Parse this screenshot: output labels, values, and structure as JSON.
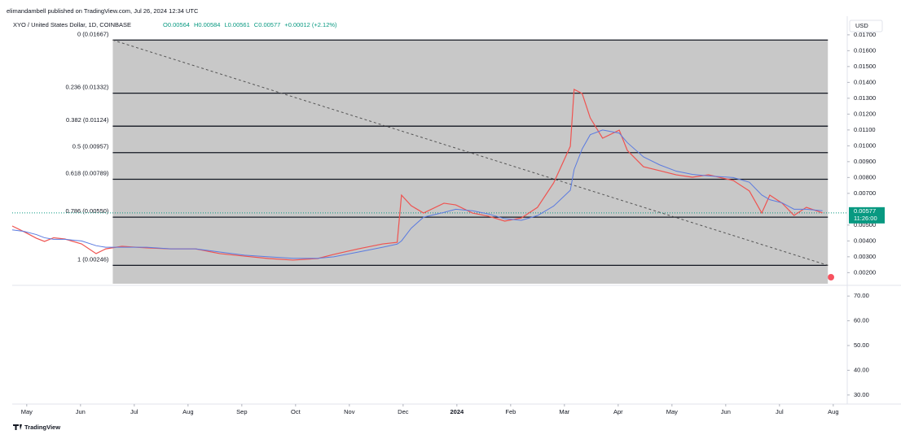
{
  "publisher": "elimandambell published on TradingView.com, Jul 26, 2024 12:34 UTC",
  "brand": "TradingView",
  "chart_data": {
    "type": "line",
    "symbol": "XYO / United States Dollar, 1D, COINBASE",
    "ohlc": [
      "O0.00564",
      "H0.00584",
      "L0.00561",
      "C0.00577",
      "+0.00012 (+2.12%)"
    ],
    "currency": "USD",
    "x": [
      -0.27,
      -0.05,
      0.18,
      0.33,
      0.5,
      0.71,
      1.02,
      1.29,
      1.47,
      1.77,
      2.23,
      2.68,
      3.14,
      3.59,
      4.05,
      4.5,
      4.95,
      5.41,
      5.71,
      6.17,
      6.62,
      6.89,
      6.97,
      7.15,
      7.38,
      7.76,
      7.98,
      8.29,
      8.59,
      8.89,
      9.2,
      9.5,
      9.8,
      10.11,
      10.18,
      10.33,
      10.48,
      10.71,
      11.02,
      11.17,
      11.47,
      11.77,
      12.08,
      12.38,
      12.68,
      13.14,
      13.44,
      13.67,
      13.82,
      14.05,
      14.27,
      14.5,
      14.8
    ],
    "series": [
      {
        "color": "#ef5350",
        "values": [
          0.00494,
          0.00458,
          0.00417,
          0.00397,
          0.0042,
          0.00412,
          0.00381,
          0.0032,
          0.0035,
          0.00366,
          0.00356,
          0.0035,
          0.0035,
          0.0032,
          0.00304,
          0.00289,
          0.00279,
          0.00289,
          0.00315,
          0.0035,
          0.00381,
          0.00391,
          0.00689,
          0.00622,
          0.00576,
          0.00638,
          0.00627,
          0.00576,
          0.00556,
          0.00525,
          0.00545,
          0.00612,
          0.00766,
          0.00997,
          0.01356,
          0.0133,
          0.01176,
          0.01048,
          0.01099,
          0.00971,
          0.00868,
          0.00843,
          0.00817,
          0.00802,
          0.00817,
          0.00781,
          0.00715,
          0.00576,
          0.00689,
          0.00638,
          0.00561,
          0.00612,
          0.00577
        ]
      },
      {
        "color": "#5b7be0",
        "values": [
          0.0047,
          0.0046,
          0.0044,
          0.0042,
          0.0041,
          0.0041,
          0.004,
          0.0037,
          0.0036,
          0.0036,
          0.0036,
          0.0035,
          0.0035,
          0.0033,
          0.0031,
          0.003,
          0.0029,
          0.0029,
          0.003,
          0.0033,
          0.0036,
          0.0038,
          0.004,
          0.0048,
          0.0055,
          0.0058,
          0.006,
          0.0059,
          0.0057,
          0.0054,
          0.0053,
          0.0056,
          0.0062,
          0.0072,
          0.0085,
          0.0098,
          0.0107,
          0.011,
          0.0108,
          0.0102,
          0.0093,
          0.0088,
          0.0084,
          0.0082,
          0.0081,
          0.008,
          0.0077,
          0.0069,
          0.0066,
          0.0064,
          0.006,
          0.006,
          0.0059
        ]
      }
    ],
    "xlim": [
      -0.27,
      15.26
    ],
    "xticks": [
      {
        "value": 0,
        "label": "May"
      },
      {
        "value": 1,
        "label": "Jun"
      },
      {
        "value": 2,
        "label": "Jul"
      },
      {
        "value": 3,
        "label": "Aug"
      },
      {
        "value": 4,
        "label": "Sep"
      },
      {
        "value": 5,
        "label": "Oct"
      },
      {
        "value": 6,
        "label": "Nov"
      },
      {
        "value": 7,
        "label": "Dec"
      },
      {
        "value": 8,
        "label": "2024"
      },
      {
        "value": 9,
        "label": "Feb"
      },
      {
        "value": 10,
        "label": "Mar"
      },
      {
        "value": 11,
        "label": "Apr"
      },
      {
        "value": 12,
        "label": "May"
      },
      {
        "value": 13,
        "label": "Jun"
      },
      {
        "value": 14,
        "label": "Jul"
      },
      {
        "value": 15,
        "label": "Aug"
      }
    ],
    "ylim": [
      0.0013,
      0.0173
    ],
    "yticks": [
      {
        "value": 0.017,
        "label": "0.01700"
      },
      {
        "value": 0.016,
        "label": "0.01600"
      },
      {
        "value": 0.015,
        "label": "0.01500"
      },
      {
        "value": 0.014,
        "label": "0.01400"
      },
      {
        "value": 0.013,
        "label": "0.01300"
      },
      {
        "value": 0.012,
        "label": "0.01200"
      },
      {
        "value": 0.011,
        "label": "0.01100"
      },
      {
        "value": 0.01,
        "label": "0.01000"
      },
      {
        "value": 0.009,
        "label": "0.00900"
      },
      {
        "value": 0.008,
        "label": "0.00800"
      },
      {
        "value": 0.007,
        "label": "0.00700"
      },
      {
        "value": 0.005,
        "label": "0.00500"
      },
      {
        "value": 0.004,
        "label": "0.00400"
      },
      {
        "value": 0.003,
        "label": "0.00300"
      },
      {
        "value": 0.002,
        "label": "0.00200"
      }
    ],
    "last_price": {
      "value": 0.00577,
      "label": "0.00577",
      "countdown": "11:26:00",
      "color": "#089981"
    },
    "fib_x": [
      1.6,
      14.9
    ],
    "fib_fill": "#c8c8c8",
    "fib_levels": [
      {
        "value": 0.01667,
        "label": "0 (0.01667)"
      },
      {
        "value": 0.01332,
        "label": "0.236 (0.01332)"
      },
      {
        "value": 0.01124,
        "label": "0.382 (0.01124)"
      },
      {
        "value": 0.00957,
        "label": "0.5 (0.00957)"
      },
      {
        "value": 0.00789,
        "label": "0.618 (0.00789)"
      },
      {
        "value": 0.0055,
        "label": "0.786 (0.00550)"
      },
      {
        "value": 0.00246,
        "label": "1 (0.00246)"
      }
    ],
    "lower_pane": {
      "ylim": [
        27,
        74
      ],
      "yticks": [
        {
          "value": 70,
          "label": "70.00"
        },
        {
          "value": 60,
          "label": "60.00"
        },
        {
          "value": 50,
          "label": "50.00"
        },
        {
          "value": 40,
          "label": "40.00"
        },
        {
          "value": 30,
          "label": "30.00"
        }
      ]
    }
  }
}
